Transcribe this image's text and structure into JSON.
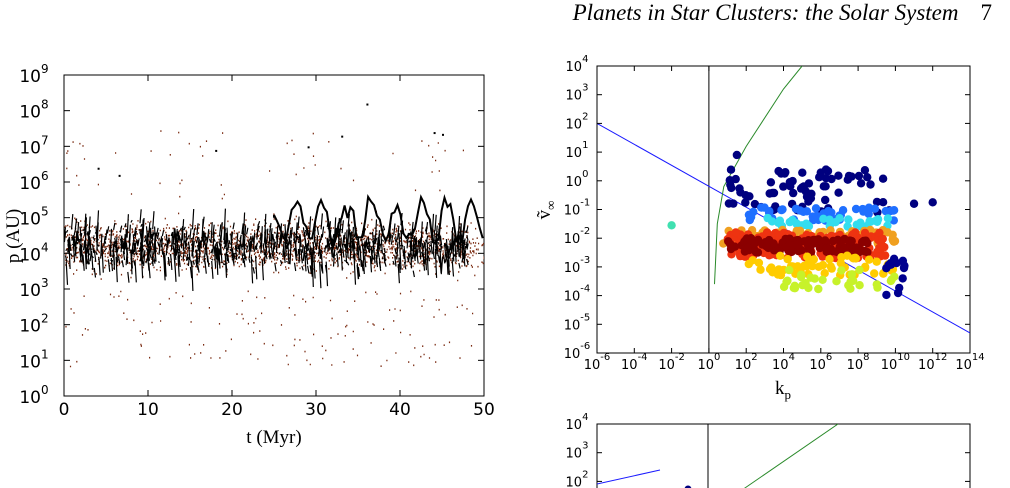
{
  "header": {
    "title": "Planets in Star Clusters: the Solar System",
    "page_number": "7"
  },
  "chart_data": [
    {
      "type": "scatter",
      "xlabel": "t (Myr)",
      "ylabel": "p (AU)",
      "xlim": [
        0,
        50
      ],
      "ylim_log10": [
        0,
        9
      ],
      "x_ticks": [
        "0",
        "10",
        "20",
        "30",
        "40",
        "50"
      ],
      "y_ticks": [
        {
          "base": "10",
          "exp": "0"
        },
        {
          "base": "10",
          "exp": "1"
        },
        {
          "base": "10",
          "exp": "2"
        },
        {
          "base": "10",
          "exp": "3"
        },
        {
          "base": "10",
          "exp": "4"
        },
        {
          "base": "10",
          "exp": "5"
        },
        {
          "base": "10",
          "exp": "6"
        },
        {
          "base": "10",
          "exp": "7"
        },
        {
          "base": "10",
          "exp": "8"
        },
        {
          "base": "10",
          "exp": "9"
        }
      ],
      "y_scale": "log",
      "series_color": "#000000",
      "point_color": "#7a2a10",
      "typical_log10_p": 4.2,
      "scatter_range_log10_p": [
        0.8,
        8.2
      ]
    },
    {
      "type": "scatter",
      "xlabel": "k",
      "xlabel_sub": "p",
      "ylabel": "ṽ",
      "ylabel_sub": "∞",
      "x_scale": "log",
      "y_scale": "log",
      "xlim_log10": [
        -6,
        14
      ],
      "ylim_log10": [
        -6,
        4
      ],
      "x_ticks": [
        {
          "base": "10",
          "exp": "-6"
        },
        {
          "base": "10",
          "exp": "-4"
        },
        {
          "base": "10",
          "exp": "-2"
        },
        {
          "base": "10",
          "exp": "0"
        },
        {
          "base": "10",
          "exp": "2"
        },
        {
          "base": "10",
          "exp": "4"
        },
        {
          "base": "10",
          "exp": "6"
        },
        {
          "base": "10",
          "exp": "8"
        },
        {
          "base": "10",
          "exp": "10"
        },
        {
          "base": "10",
          "exp": "12"
        },
        {
          "base": "10",
          "exp": "14"
        }
      ],
      "y_ticks": [
        {
          "base": "10",
          "exp": "-6"
        },
        {
          "base": "10",
          "exp": "-5"
        },
        {
          "base": "10",
          "exp": "-4"
        },
        {
          "base": "10",
          "exp": "-3"
        },
        {
          "base": "10",
          "exp": "-2"
        },
        {
          "base": "10",
          "exp": "-1"
        },
        {
          "base": "10",
          "exp": "0"
        },
        {
          "base": "10",
          "exp": "1"
        },
        {
          "base": "10",
          "exp": "2"
        },
        {
          "base": "10",
          "exp": "3"
        },
        {
          "base": "10",
          "exp": "4"
        }
      ],
      "vertical_line_log10_k": 0,
      "blue_line": {
        "color": "#1a1aff",
        "log10_points": [
          [
            -6,
            2
          ],
          [
            14,
            -5.3
          ]
        ]
      },
      "green_curve": {
        "color": "#2a8a2a",
        "log10_points": [
          [
            0.3,
            -3.6
          ],
          [
            0.45,
            -1.5
          ],
          [
            0.8,
            -0.2
          ],
          [
            2,
            1.2
          ],
          [
            4,
            3.2
          ],
          [
            5,
            4
          ]
        ]
      },
      "point_clusters": [
        {
          "color": "#00007f",
          "log10_k_range": [
            1,
            10
          ],
          "log10_v_range": [
            -1.1,
            0.4
          ],
          "count": 70
        },
        {
          "color": "#1f6fff",
          "log10_k_range": [
            2,
            10
          ],
          "log10_v_range": [
            -1.4,
            -0.9
          ],
          "count": 45
        },
        {
          "color": "#33ddee",
          "log10_k_range": [
            3,
            10
          ],
          "log10_v_range": [
            -1.6,
            -1.3
          ],
          "count": 35
        },
        {
          "color": "#f0a020",
          "log10_k_range": [
            0.5,
            10
          ],
          "log10_v_range": [
            -2.2,
            -1.7
          ],
          "count": 90
        },
        {
          "color": "#ee3311",
          "log10_k_range": [
            1,
            9.5
          ],
          "log10_v_range": [
            -2.7,
            -1.8
          ],
          "count": 160
        },
        {
          "color": "#8b0000",
          "log10_k_range": [
            1,
            8.5
          ],
          "log10_v_range": [
            -2.5,
            -2.0
          ],
          "count": 110
        },
        {
          "color": "#ffcc00",
          "log10_k_range": [
            2,
            10
          ],
          "log10_v_range": [
            -3.3,
            -2.6
          ],
          "count": 60
        },
        {
          "color": "#c7f22a",
          "log10_k_range": [
            4,
            10
          ],
          "log10_v_range": [
            -3.8,
            -3.0
          ],
          "count": 30
        },
        {
          "color": "#00008f",
          "log10_k_range": [
            9.5,
            10.5
          ],
          "log10_v_range": [
            -4.1,
            -2.6
          ],
          "count": 14
        }
      ],
      "outliers": [
        {
          "color": "#40e0b0",
          "log10_k": -2,
          "log10_v": -1.55
        },
        {
          "color": "#00007f",
          "log10_k": 1.5,
          "log10_v": 0.9
        },
        {
          "color": "#00007f",
          "log10_k": 11,
          "log10_v": -0.8
        },
        {
          "color": "#00007f",
          "log10_k": 12,
          "log10_v": -0.75
        }
      ]
    },
    {
      "type": "scatter",
      "x_scale": "log",
      "y_scale": "log",
      "y_ticks_visible": [
        {
          "base": "10",
          "exp": "4"
        },
        {
          "base": "10",
          "exp": "3"
        },
        {
          "base": "10",
          "exp": "2"
        }
      ]
    }
  ]
}
